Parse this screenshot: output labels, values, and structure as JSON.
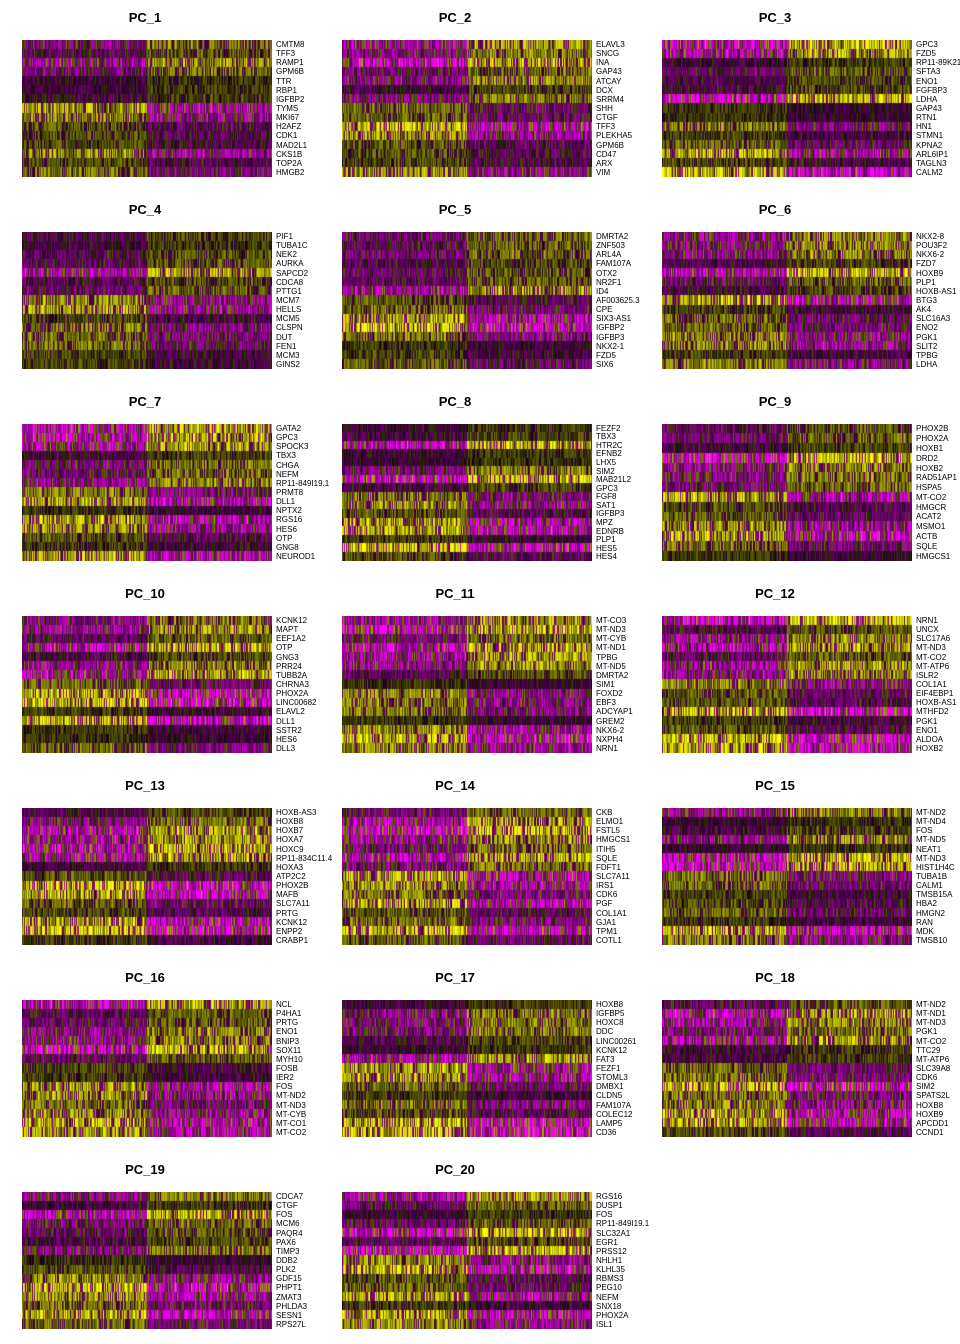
{
  "chart_data": {
    "type": "heatmap",
    "colors": {
      "low": "#ff00ff",
      "mid": "#000000",
      "high": "#ffff00"
    },
    "panels": [
      {
        "title": "PC_1",
        "genes": [
          "CMTM8",
          "TFF3",
          "RAMP1",
          "GPM6B",
          "TTR",
          "RBP1",
          "IGFBP2",
          "TYMS",
          "MKI67",
          "H2AFZ",
          "CDK1",
          "MAD2L1",
          "CKS1B",
          "TOP2A",
          "HMGB2"
        ],
        "split": 0.5,
        "pattern": "low-top"
      },
      {
        "title": "PC_2",
        "genes": [
          "ELAVL3",
          "SNCG",
          "INA",
          "GAP43",
          "ATCAY",
          "DCX",
          "SRRM4",
          "SHH",
          "CTGF",
          "TFF3",
          "PLEKHA5",
          "GPM6B",
          "CD47",
          "ARX",
          "VIM"
        ],
        "split": 0.5,
        "pattern": "high-top"
      },
      {
        "title": "PC_3",
        "genes": [
          "GPC3",
          "FZD5",
          "RP11-89K21",
          "SFTA3",
          "ENO1",
          "FGFBP3",
          "LDHA",
          "GAP43",
          "RTN1",
          "HN1",
          "STMN1",
          "KPNA2",
          "ARL6IP1",
          "TAGLN3",
          "CALM2"
        ],
        "split": 0.5,
        "pattern": "high-top"
      },
      {
        "title": "PC_4",
        "genes": [
          "PIF1",
          "TUBA1C",
          "NEK2",
          "AURKA",
          "SAPCD2",
          "CDCA8",
          "PTTG1",
          "MCM7",
          "HELLS",
          "MCM5",
          "CLSPN",
          "DUT",
          "FEN1",
          "MCM3",
          "GINS2"
        ],
        "split": 0.5,
        "pattern": "high-top"
      },
      {
        "title": "PC_5",
        "genes": [
          "DMRTA2",
          "ZNF503",
          "ARL4A",
          "FAM107A",
          "OTX2",
          "NR2F1",
          "ID4",
          "AF003625.3",
          "CPE",
          "SIX3-AS1",
          "IGFBP2",
          "IGFBP3",
          "NKX2-1",
          "FZD5",
          "SIX6"
        ],
        "split": 0.5,
        "pattern": "high-top"
      },
      {
        "title": "PC_6",
        "genes": [
          "NKX2-8",
          "POU3F2",
          "NKX6-2",
          "FZD7",
          "HOXB9",
          "PLP1",
          "HOXB-AS1",
          "BTG3",
          "AK4",
          "SLC16A3",
          "ENO2",
          "PGK1",
          "SLIT2",
          "TPBG",
          "LDHA"
        ],
        "split": 0.5,
        "pattern": "high-top"
      },
      {
        "title": "PC_7",
        "genes": [
          "GATA2",
          "GPC3",
          "SPOCK3",
          "TBX3",
          "CHGA",
          "NEFM",
          "RP11-849I19.1",
          "PRMT8",
          "DLL1",
          "NPTX2",
          "RGS16",
          "HES6",
          "OTP",
          "GNG8",
          "NEUROD1"
        ],
        "split": 0.5,
        "pattern": "high-top"
      },
      {
        "title": "PC_8",
        "genes": [
          "FEZF2",
          "TBX3",
          "HTR2C",
          "EFNB2",
          "LHX5",
          "SIM2",
          "MAB21L2",
          "GPC3",
          "FGF8",
          "SAT1",
          "IGFBP3",
          "MPZ",
          "EDNRB",
          "PLP1",
          "HES5",
          "HES4"
        ],
        "split": 0.5,
        "pattern": "high-top"
      },
      {
        "title": "PC_9",
        "genes": [
          "PHOX2B",
          "PHOX2A",
          "HOXB1",
          "DRD2",
          "HOXB2",
          "RAD51AP1",
          "HSPA5",
          "MT-CO2",
          "HMGCR",
          "ACAT2",
          "MSMO1",
          "ACTB",
          "SQLE",
          "HMGCS1"
        ],
        "split": 0.5,
        "pattern": "high-top"
      },
      {
        "title": "PC_10",
        "genes": [
          "KCNK12",
          "MAPT",
          "EEF1A2",
          "OTP",
          "GNG3",
          "PRR24",
          "TUBB2A",
          "CHRNA3",
          "PHOX2A",
          "LINC00682",
          "ELAVL2",
          "DLL1",
          "SSTR2",
          "HES6",
          "DLL3"
        ],
        "split": 0.5,
        "pattern": "high-top"
      },
      {
        "title": "PC_11",
        "genes": [
          "MT-CO3",
          "MT-ND3",
          "MT-CYB",
          "MT-ND1",
          "TPBG",
          "MT-ND5",
          "DMRTA2",
          "SIM1",
          "FOXD2",
          "EBF3",
          "ADCYAP1",
          "GREM2",
          "NKX6-2",
          "NXPH4",
          "NRN1"
        ],
        "split": 0.5,
        "pattern": "high-top"
      },
      {
        "title": "PC_12",
        "genes": [
          "NRN1",
          "UNCX",
          "SLC17A6",
          "MT-ND3",
          "MT-CO2",
          "MT-ATP6",
          "ISLR2",
          "COL1A1",
          "EIF4EBP1",
          "HOXB-AS1",
          "MTHFD2",
          "PGK1",
          "ENO1",
          "ALDOA",
          "HOXB2"
        ],
        "split": 0.5,
        "pattern": "high-top"
      },
      {
        "title": "PC_13",
        "genes": [
          "HOXB-AS3",
          "HOXB8",
          "HOXB7",
          "HOXA7",
          "HOXC9",
          "RP11-834C11.4",
          "HOXA3",
          "ATP2C2",
          "PHOX2B",
          "MAFB",
          "SLC7A11",
          "PRTG",
          "KCNK12",
          "ENPP2",
          "CRABP1"
        ],
        "split": 0.5,
        "pattern": "high-top"
      },
      {
        "title": "PC_14",
        "genes": [
          "CKB",
          "ELMO1",
          "FSTL5",
          "HMGCS1",
          "ITIH5",
          "SQLE",
          "FDFT1",
          "SLC7A11",
          "IRS1",
          "CDK6",
          "PGF",
          "COL1A1",
          "GJA1",
          "TPM1",
          "COTL1"
        ],
        "split": 0.5,
        "pattern": "high-top"
      },
      {
        "title": "PC_15",
        "genes": [
          "MT-ND2",
          "MT-ND4",
          "FOS",
          "MT-ND5",
          "NEAT1",
          "MT-ND3",
          "HIST1H4C",
          "TUBA1B",
          "CALM1",
          "TMSB15A",
          "HBA2",
          "HMGN2",
          "RAN",
          "MDK",
          "TMSB10"
        ],
        "split": 0.5,
        "pattern": "high-top"
      },
      {
        "title": "PC_16",
        "genes": [
          "NCL",
          "P4HA1",
          "PRTG",
          "ENO1",
          "BNIP3",
          "SOX11",
          "MYH10",
          "FOSB",
          "IER2",
          "FOS",
          "MT-ND2",
          "MT-ND3",
          "MT-CYB",
          "MT-CO1",
          "MT-CO2"
        ],
        "split": 0.5,
        "pattern": "high-top"
      },
      {
        "title": "PC_17",
        "genes": [
          "HOXB8",
          "IGFBP5",
          "HOXC8",
          "DDC",
          "LINC00261",
          "KCNK12",
          "FAT3",
          "FEZF1",
          "STOML3",
          "DMBX1",
          "CLDN5",
          "FAM107A",
          "COLEC12",
          "LAMP5",
          "CD36"
        ],
        "split": 0.5,
        "pattern": "high-top"
      },
      {
        "title": "PC_18",
        "genes": [
          "MT-ND2",
          "MT-ND1",
          "MT-ND3",
          "PGK1",
          "MT-CO2",
          "TTC29",
          "MT-ATP6",
          "SLC39A8",
          "CDK6",
          "SIM2",
          "SPATS2L",
          "HOXB8",
          "HOXB9",
          "APCDD1",
          "CCND1"
        ],
        "split": 0.5,
        "pattern": "high-top"
      },
      {
        "title": "PC_19",
        "genes": [
          "CDCA7",
          "CTGF",
          "FOS",
          "MCM6",
          "PAQR4",
          "PAX6",
          "TIMP3",
          "DDB2",
          "PLK2",
          "GDF15",
          "PHPT1",
          "ZMAT3",
          "PHLDA3",
          "SESN1",
          "RPS27L"
        ],
        "split": 0.5,
        "pattern": "high-top"
      },
      {
        "title": "PC_20",
        "genes": [
          "RGS16",
          "DUSP1",
          "FOS",
          "RP11-849I19.1",
          "SLC32A1",
          "EGR1",
          "PRSS12",
          "NHLH1",
          "KLHL35",
          "RBMS3",
          "PEG10",
          "NEFM",
          "SNX18",
          "PHOX2A",
          "ISL1"
        ],
        "split": 0.5,
        "pattern": "high-top"
      }
    ]
  }
}
